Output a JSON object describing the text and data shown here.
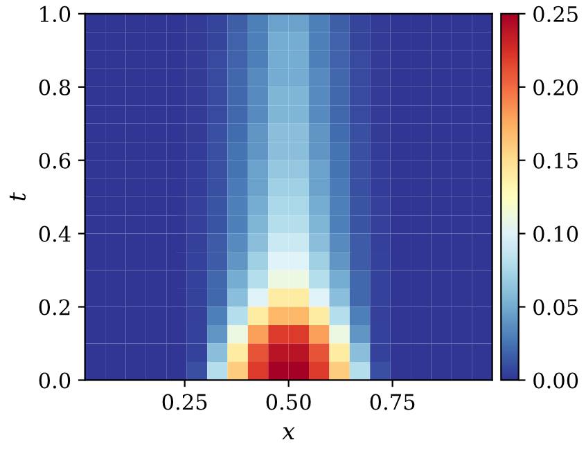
{
  "chart_data": {
    "type": "heatmap",
    "xlabel": "x",
    "ylabel": "t",
    "x": [
      0.0345,
      0.0835,
      0.1325,
      0.1815,
      0.2305,
      0.2795,
      0.3285,
      0.3775,
      0.4265,
      0.4755,
      0.5245,
      0.5735,
      0.6225,
      0.6715,
      0.7205,
      0.7695,
      0.8185,
      0.8675,
      0.9165,
      0.9655
    ],
    "y": [
      0.975,
      0.925,
      0.875,
      0.825,
      0.775,
      0.725,
      0.675,
      0.625,
      0.575,
      0.525,
      0.475,
      0.425,
      0.375,
      0.325,
      0.275,
      0.225,
      0.175,
      0.125,
      0.075,
      0.025
    ],
    "cells": [
      [
        0,
        0,
        0,
        0,
        0,
        0.002,
        0.006,
        0.016,
        0.03,
        0.045,
        0.045,
        0.03,
        0.016,
        0.006,
        0.002,
        0,
        0,
        0,
        0,
        0
      ],
      [
        0,
        0,
        0,
        0,
        0,
        0.002,
        0.006,
        0.018,
        0.03,
        0.05,
        0.05,
        0.03,
        0.018,
        0.006,
        0.002,
        0,
        0,
        0,
        0,
        0
      ],
      [
        0,
        0,
        0,
        0,
        0,
        0.002,
        0.008,
        0.018,
        0.03,
        0.05,
        0.05,
        0.03,
        0.018,
        0.008,
        0.002,
        0,
        0,
        0,
        0,
        0
      ],
      [
        0,
        0,
        0,
        0,
        0,
        0.002,
        0.008,
        0.02,
        0.035,
        0.05,
        0.05,
        0.035,
        0.02,
        0.008,
        0.002,
        0,
        0,
        0,
        0,
        0
      ],
      [
        0,
        0,
        0,
        0,
        0,
        0.002,
        0.008,
        0.02,
        0.035,
        0.055,
        0.055,
        0.035,
        0.02,
        0.008,
        0.002,
        0,
        0,
        0,
        0,
        0
      ],
      [
        0,
        0,
        0,
        0,
        0,
        0.002,
        0.008,
        0.02,
        0.035,
        0.055,
        0.055,
        0.035,
        0.02,
        0.008,
        0.002,
        0,
        0,
        0,
        0,
        0
      ],
      [
        0,
        0,
        0,
        0,
        0,
        0.002,
        0.01,
        0.022,
        0.04,
        0.06,
        0.06,
        0.04,
        0.022,
        0.01,
        0.002,
        0,
        0,
        0,
        0,
        0
      ],
      [
        0,
        0,
        0,
        0,
        0,
        0.003,
        0.01,
        0.025,
        0.04,
        0.06,
        0.06,
        0.04,
        0.025,
        0.01,
        0.003,
        0,
        0,
        0,
        0,
        0
      ],
      [
        0,
        0,
        0,
        0,
        0,
        0.003,
        0.01,
        0.025,
        0.045,
        0.065,
        0.065,
        0.045,
        0.025,
        0.01,
        0.003,
        0,
        0,
        0,
        0,
        0
      ],
      [
        0,
        0,
        0,
        0,
        0,
        0.003,
        0.01,
        0.028,
        0.045,
        0.07,
        0.07,
        0.045,
        0.028,
        0.01,
        0.003,
        0,
        0,
        0,
        0,
        0
      ],
      [
        0,
        0,
        0,
        0,
        0,
        0.004,
        0.012,
        0.03,
        0.05,
        0.075,
        0.075,
        0.05,
        0.03,
        0.012,
        0.004,
        0,
        0,
        0,
        0,
        0
      ],
      [
        0,
        0,
        0,
        0,
        0,
        0.004,
        0.012,
        0.03,
        0.055,
        0.08,
        0.08,
        0.055,
        0.03,
        0.012,
        0.004,
        0,
        0,
        0,
        0,
        0
      ],
      [
        0,
        0,
        0,
        0,
        0,
        0.004,
        0.015,
        0.035,
        0.06,
        0.09,
        0.09,
        0.06,
        0.035,
        0.015,
        0.004,
        0,
        0,
        0,
        0,
        0
      ],
      [
        0,
        0,
        0,
        0,
        0,
        0.005,
        0.015,
        0.04,
        0.07,
        0.1,
        0.1,
        0.07,
        0.04,
        0.015,
        0.005,
        0,
        0,
        0,
        0,
        0
      ],
      [
        0,
        0,
        0,
        0,
        0,
        0.005,
        0.02,
        0.05,
        0.08,
        0.11,
        0.11,
        0.08,
        0.05,
        0.02,
        0.005,
        0,
        0,
        0,
        0,
        0
      ],
      [
        0,
        0,
        0,
        0,
        0,
        0.005,
        0.02,
        0.06,
        0.1,
        0.14,
        0.14,
        0.1,
        0.06,
        0.02,
        0.005,
        0,
        0,
        0,
        0,
        0
      ],
      [
        0,
        0,
        0,
        0,
        0,
        0.004,
        0.03,
        0.08,
        0.14,
        0.17,
        0.17,
        0.14,
        0.08,
        0.03,
        0.004,
        0,
        0,
        0,
        0,
        0
      ],
      [
        0,
        0,
        0,
        0,
        0,
        0.005,
        0.04,
        0.11,
        0.18,
        0.22,
        0.22,
        0.18,
        0.11,
        0.04,
        0.005,
        0,
        0,
        0,
        0,
        0
      ],
      [
        0,
        0,
        0,
        0,
        0,
        0.005,
        0.06,
        0.14,
        0.21,
        0.24,
        0.24,
        0.21,
        0.14,
        0.06,
        0.005,
        0,
        0,
        0,
        0,
        0
      ],
      [
        0,
        0,
        0,
        0,
        0,
        0.01,
        0.08,
        0.16,
        0.22,
        0.25,
        0.25,
        0.22,
        0.16,
        0.08,
        0.01,
        0,
        0,
        0,
        0,
        0
      ]
    ],
    "xlim": [
      0.01,
      0.99
    ],
    "ylim": [
      0.0,
      1.0
    ],
    "xticks": [
      {
        "value": 0.25,
        "label": "0.25"
      },
      {
        "value": 0.5,
        "label": "0.50"
      },
      {
        "value": 0.75,
        "label": "0.75"
      }
    ],
    "yticks": [
      {
        "value": 0,
        "label": "0.0"
      },
      {
        "value": 0.2,
        "label": "0.2"
      },
      {
        "value": 0.4,
        "label": "0.4"
      },
      {
        "value": 0.6,
        "label": "0.6"
      },
      {
        "value": 0.8,
        "label": "0.8"
      },
      {
        "value": 1,
        "label": "1.0"
      }
    ],
    "clim": [
      0,
      0.25
    ],
    "cticks": [
      {
        "value": 0,
        "label": "0.00"
      },
      {
        "value": 0.05,
        "label": "0.05"
      },
      {
        "value": 0.1,
        "label": "0.10"
      },
      {
        "value": 0.15,
        "label": "0.15"
      },
      {
        "value": 0.2,
        "label": "0.20"
      },
      {
        "value": 0.25,
        "label": "0.25"
      }
    ],
    "grid": false
  }
}
